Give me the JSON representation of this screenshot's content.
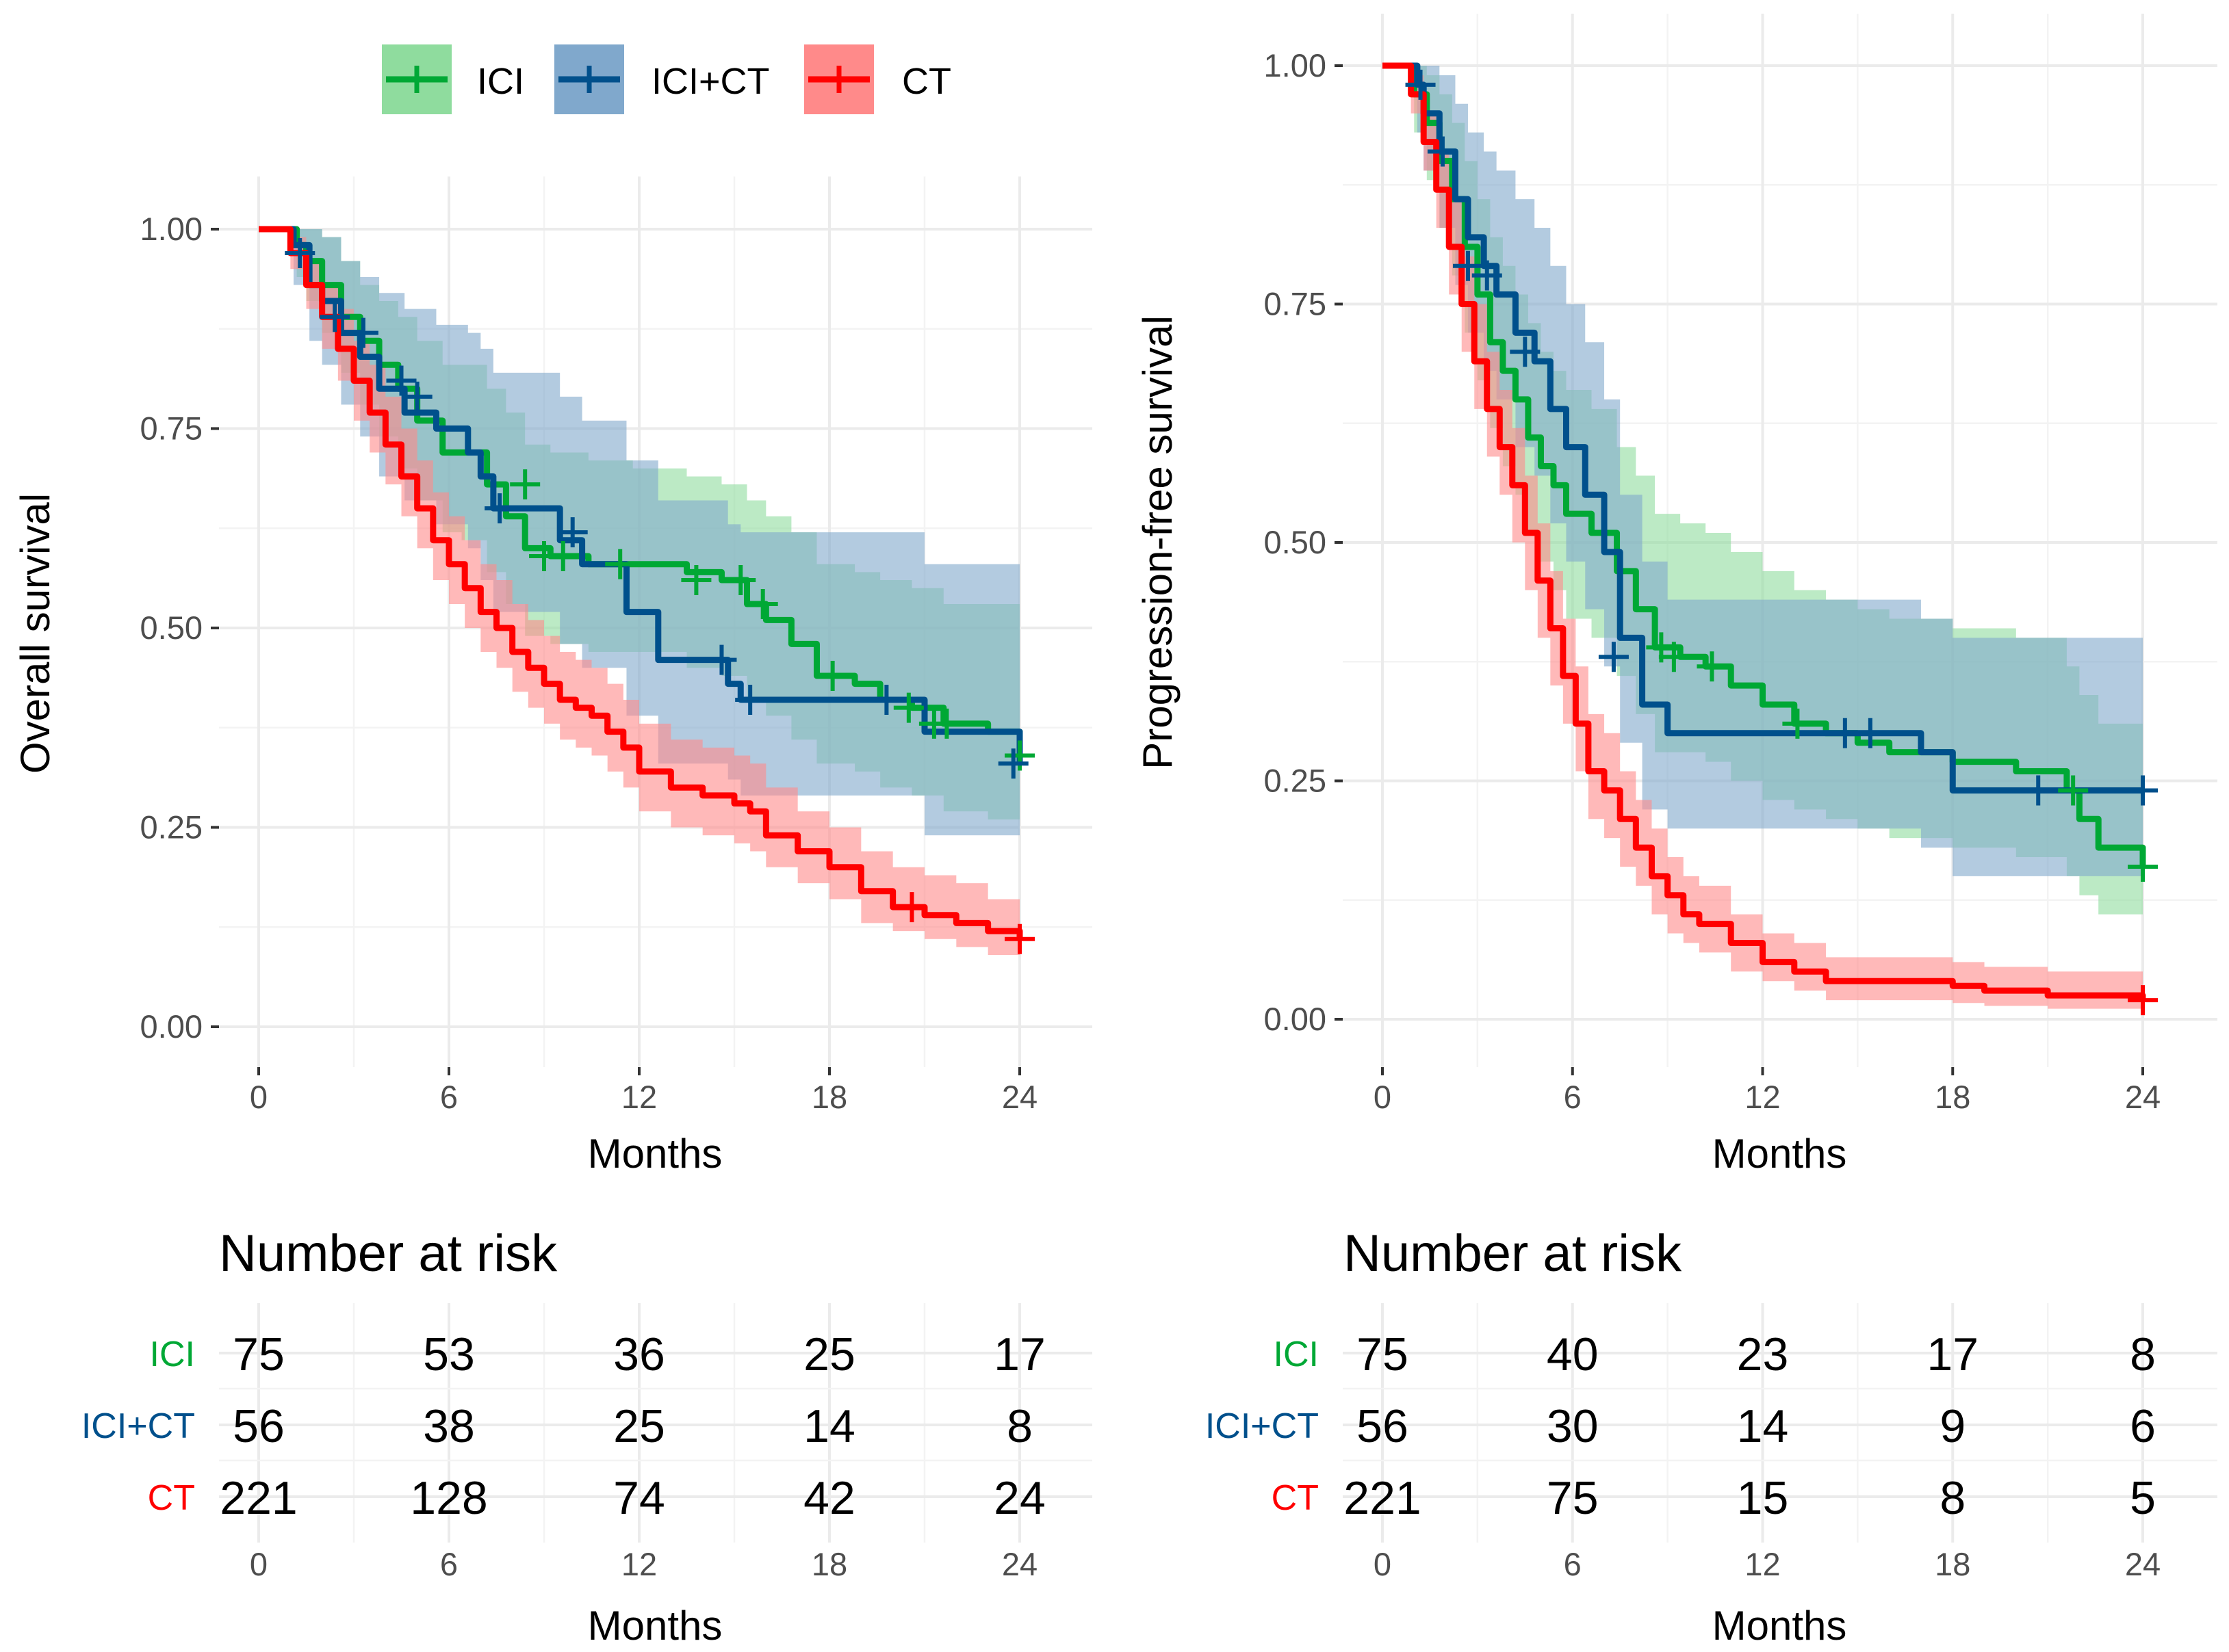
{
  "colors": {
    "ICI": "#00A835",
    "ICI+CT": "#00508C",
    "CT": "#FF0000",
    "ICI_fill": "#8FDC9E",
    "ICI+CT_fill": "#80A8CC",
    "CT_fill": "#FF8A8A"
  },
  "legend": {
    "items": [
      {
        "key": "ICI",
        "label": "ICI"
      },
      {
        "key": "ICI+CT",
        "label": "ICI+CT"
      },
      {
        "key": "CT",
        "label": "CT"
      }
    ]
  },
  "chart_data": [
    {
      "type": "line",
      "subtype": "kaplan-meier",
      "title": "",
      "xlabel": "Months",
      "ylabel": "Overall survival",
      "xlim": [
        0,
        24
      ],
      "ylim": [
        0,
        1
      ],
      "x_ticks": [
        "0",
        "6",
        "12",
        "18",
        "24"
      ],
      "y_ticks": [
        "0.00",
        "0.25",
        "0.50",
        "0.75",
        "1.00"
      ],
      "series": [
        {
          "name": "ICI",
          "t": [
            0,
            1.2,
            1.5,
            2.0,
            2.6,
            3.2,
            3.8,
            4.4,
            5.0,
            5.8,
            6.4,
            7.2,
            7.8,
            8.4,
            9.2,
            10.4,
            11.8,
            13.5,
            14.6,
            15.4,
            16.0,
            16.8,
            17.6,
            18.8,
            19.6,
            20.6,
            21.6,
            23.0,
            24.0
          ],
          "s": [
            1.0,
            0.98,
            0.96,
            0.93,
            0.89,
            0.86,
            0.83,
            0.8,
            0.76,
            0.72,
            0.72,
            0.68,
            0.64,
            0.6,
            0.59,
            0.58,
            0.58,
            0.57,
            0.56,
            0.53,
            0.51,
            0.48,
            0.44,
            0.43,
            0.41,
            0.4,
            0.38,
            0.37,
            0.34
          ],
          "lo": [
            1.0,
            0.94,
            0.91,
            0.87,
            0.82,
            0.78,
            0.74,
            0.7,
            0.66,
            0.62,
            0.61,
            0.57,
            0.53,
            0.49,
            0.48,
            0.47,
            0.47,
            0.45,
            0.44,
            0.41,
            0.39,
            0.36,
            0.33,
            0.32,
            0.3,
            0.29,
            0.27,
            0.26,
            0.22
          ],
          "hi": [
            1.0,
            1.0,
            1.0,
            0.99,
            0.96,
            0.93,
            0.91,
            0.89,
            0.86,
            0.83,
            0.83,
            0.8,
            0.77,
            0.73,
            0.72,
            0.71,
            0.7,
            0.69,
            0.68,
            0.66,
            0.64,
            0.62,
            0.58,
            0.57,
            0.56,
            0.55,
            0.53,
            0.53,
            0.5
          ],
          "censor_t": [
            8.4,
            9.0,
            9.6,
            11.4,
            13.8,
            15.2,
            15.9,
            18.1,
            20.5,
            21.3,
            21.7,
            24.0
          ],
          "censor_s": [
            0.68,
            0.59,
            0.59,
            0.58,
            0.56,
            0.56,
            0.53,
            0.44,
            0.4,
            0.38,
            0.38,
            0.34
          ]
        },
        {
          "name": "ICI+CT",
          "t": [
            0,
            1.1,
            1.6,
            2.0,
            2.6,
            3.2,
            3.8,
            4.6,
            5.6,
            6.6,
            7.0,
            7.4,
            8.0,
            9.5,
            10.2,
            11.6,
            12.6,
            14.8,
            15.2,
            15.8,
            19.6,
            21.0,
            24.0
          ],
          "s": [
            1.0,
            0.98,
            0.93,
            0.91,
            0.87,
            0.84,
            0.8,
            0.77,
            0.75,
            0.72,
            0.69,
            0.65,
            0.65,
            0.61,
            0.58,
            0.52,
            0.46,
            0.43,
            0.41,
            0.41,
            0.41,
            0.37,
            0.33
          ],
          "lo": [
            1.0,
            0.93,
            0.86,
            0.83,
            0.78,
            0.74,
            0.69,
            0.66,
            0.63,
            0.6,
            0.56,
            0.52,
            0.52,
            0.48,
            0.45,
            0.39,
            0.33,
            0.31,
            0.29,
            0.29,
            0.29,
            0.24,
            0.21
          ],
          "hi": [
            1.0,
            1.0,
            1.0,
            0.99,
            0.96,
            0.94,
            0.92,
            0.9,
            0.88,
            0.87,
            0.85,
            0.82,
            0.82,
            0.79,
            0.76,
            0.71,
            0.66,
            0.63,
            0.62,
            0.62,
            0.62,
            0.58,
            0.55
          ],
          "censor_t": [
            1.3,
            2.4,
            3.3,
            4.5,
            5.0,
            7.6,
            9.9,
            14.6,
            15.5,
            19.8,
            23.8
          ],
          "censor_s": [
            0.97,
            0.89,
            0.87,
            0.81,
            0.79,
            0.65,
            0.62,
            0.46,
            0.41,
            0.41,
            0.33
          ]
        },
        {
          "name": "CT",
          "t": [
            0,
            1.0,
            1.5,
            2.0,
            2.5,
            3.0,
            3.5,
            4.0,
            4.5,
            5.0,
            5.5,
            6.0,
            6.5,
            7.0,
            7.5,
            8.0,
            8.5,
            9.0,
            9.5,
            10.0,
            10.5,
            11.0,
            11.5,
            12.0,
            13.0,
            14.0,
            15.0,
            15.5,
            16.0,
            17.0,
            18.0,
            19.0,
            20.0,
            21.0,
            22.0,
            23.0,
            24.0
          ],
          "s": [
            1.0,
            0.97,
            0.93,
            0.89,
            0.85,
            0.81,
            0.77,
            0.73,
            0.69,
            0.65,
            0.61,
            0.58,
            0.55,
            0.52,
            0.5,
            0.47,
            0.45,
            0.43,
            0.41,
            0.4,
            0.39,
            0.37,
            0.35,
            0.32,
            0.3,
            0.29,
            0.28,
            0.27,
            0.24,
            0.22,
            0.2,
            0.17,
            0.15,
            0.14,
            0.13,
            0.12,
            0.11
          ],
          "lo": [
            1.0,
            0.95,
            0.9,
            0.85,
            0.81,
            0.76,
            0.72,
            0.68,
            0.64,
            0.6,
            0.56,
            0.53,
            0.5,
            0.47,
            0.45,
            0.42,
            0.4,
            0.38,
            0.36,
            0.35,
            0.34,
            0.32,
            0.3,
            0.27,
            0.25,
            0.24,
            0.23,
            0.22,
            0.2,
            0.18,
            0.16,
            0.13,
            0.12,
            0.11,
            0.1,
            0.09,
            0.08
          ],
          "hi": [
            1.0,
            0.99,
            0.96,
            0.93,
            0.9,
            0.86,
            0.83,
            0.79,
            0.75,
            0.71,
            0.67,
            0.64,
            0.61,
            0.58,
            0.56,
            0.53,
            0.51,
            0.49,
            0.47,
            0.46,
            0.45,
            0.43,
            0.41,
            0.38,
            0.36,
            0.35,
            0.34,
            0.33,
            0.3,
            0.27,
            0.25,
            0.22,
            0.2,
            0.19,
            0.18,
            0.16,
            0.15
          ],
          "censor_t": [
            20.6,
            24.0
          ],
          "censor_s": [
            0.15,
            0.11
          ]
        }
      ],
      "risk_table": {
        "title": "Number at risk",
        "xlabel": "Months",
        "times": [
          "0",
          "6",
          "12",
          "18",
          "24"
        ],
        "rows": [
          {
            "strata": "ICI",
            "values": [
              "75",
              "53",
              "36",
              "25",
              "17"
            ]
          },
          {
            "strata": "ICI+CT",
            "values": [
              "56",
              "38",
              "25",
              "14",
              "8"
            ]
          },
          {
            "strata": "CT",
            "values": [
              "221",
              "128",
              "74",
              "42",
              "24"
            ]
          }
        ]
      }
    },
    {
      "type": "line",
      "subtype": "kaplan-meier",
      "title": "",
      "xlabel": "Months",
      "ylabel": "Progression-free survival",
      "xlim": [
        0,
        24
      ],
      "ylim": [
        0,
        1
      ],
      "x_ticks": [
        "0",
        "6",
        "12",
        "18",
        "24"
      ],
      "y_ticks": [
        "0.00",
        "0.25",
        "0.50",
        "0.75",
        "1.00"
      ],
      "series": [
        {
          "name": "ICI",
          "t": [
            0,
            1.0,
            1.4,
            1.8,
            2.2,
            2.6,
            3.0,
            3.4,
            3.8,
            4.2,
            4.6,
            5.0,
            5.4,
            5.8,
            6.6,
            7.4,
            8.0,
            8.6,
            9.4,
            10.2,
            11.0,
            12.0,
            13.0,
            14.0,
            15.0,
            16.0,
            17.0,
            18.0,
            20.0,
            21.6,
            22.0,
            22.6,
            24.0
          ],
          "s": [
            1.0,
            0.97,
            0.94,
            0.9,
            0.86,
            0.81,
            0.76,
            0.71,
            0.68,
            0.65,
            0.61,
            0.58,
            0.56,
            0.53,
            0.51,
            0.47,
            0.43,
            0.39,
            0.38,
            0.37,
            0.35,
            0.33,
            0.31,
            0.3,
            0.29,
            0.28,
            0.28,
            0.27,
            0.26,
            0.24,
            0.21,
            0.18,
            0.16
          ],
          "lo": [
            1.0,
            0.93,
            0.88,
            0.83,
            0.78,
            0.72,
            0.67,
            0.62,
            0.58,
            0.55,
            0.51,
            0.48,
            0.45,
            0.42,
            0.4,
            0.36,
            0.32,
            0.28,
            0.28,
            0.27,
            0.25,
            0.23,
            0.22,
            0.21,
            0.2,
            0.19,
            0.19,
            0.18,
            0.17,
            0.15,
            0.13,
            0.11,
            0.09
          ],
          "hi": [
            1.0,
            1.0,
            0.99,
            0.97,
            0.94,
            0.9,
            0.86,
            0.82,
            0.79,
            0.76,
            0.73,
            0.7,
            0.68,
            0.66,
            0.64,
            0.6,
            0.57,
            0.53,
            0.52,
            0.51,
            0.49,
            0.47,
            0.45,
            0.44,
            0.43,
            0.42,
            0.42,
            0.41,
            0.4,
            0.37,
            0.34,
            0.31,
            0.29
          ],
          "censor_t": [
            8.8,
            9.2,
            10.4,
            13.1,
            21.8,
            24.0
          ],
          "censor_s": [
            0.39,
            0.38,
            0.37,
            0.31,
            0.24,
            0.16
          ]
        },
        {
          "name": "ICI+CT",
          "t": [
            0,
            1.1,
            1.3,
            1.8,
            2.3,
            2.7,
            3.2,
            3.6,
            4.2,
            4.8,
            5.3,
            5.8,
            6.4,
            7.0,
            7.5,
            8.2,
            9.0,
            10.0,
            12.0,
            14.0,
            16.0,
            17.0,
            18.0,
            20.0,
            22.0,
            24.0
          ],
          "s": [
            1.0,
            0.98,
            0.95,
            0.91,
            0.86,
            0.82,
            0.79,
            0.76,
            0.72,
            0.69,
            0.64,
            0.6,
            0.55,
            0.49,
            0.4,
            0.33,
            0.3,
            0.3,
            0.3,
            0.3,
            0.3,
            0.28,
            0.24,
            0.24,
            0.24,
            0.24
          ],
          "lo": [
            1.0,
            0.93,
            0.89,
            0.83,
            0.77,
            0.72,
            0.68,
            0.65,
            0.6,
            0.57,
            0.52,
            0.48,
            0.43,
            0.37,
            0.29,
            0.22,
            0.2,
            0.2,
            0.2,
            0.2,
            0.2,
            0.18,
            0.15,
            0.15,
            0.15,
            0.15
          ],
          "hi": [
            1.0,
            1.0,
            1.0,
            0.99,
            0.96,
            0.93,
            0.91,
            0.89,
            0.86,
            0.83,
            0.79,
            0.75,
            0.71,
            0.65,
            0.55,
            0.48,
            0.44,
            0.44,
            0.44,
            0.44,
            0.44,
            0.42,
            0.4,
            0.4,
            0.4,
            0.4
          ],
          "censor_t": [
            1.2,
            1.9,
            2.7,
            3.3,
            4.5,
            7.3,
            14.6,
            15.4,
            20.7,
            24.0
          ],
          "censor_s": [
            0.98,
            0.91,
            0.79,
            0.78,
            0.7,
            0.38,
            0.3,
            0.3,
            0.24,
            0.24
          ]
        },
        {
          "name": "CT",
          "t": [
            0,
            0.9,
            1.3,
            1.7,
            2.1,
            2.5,
            2.9,
            3.3,
            3.7,
            4.1,
            4.5,
            4.9,
            5.3,
            5.7,
            6.1,
            6.5,
            7.0,
            7.5,
            8.0,
            8.5,
            9.0,
            9.5,
            10.0,
            11.0,
            12.0,
            13.0,
            14.0,
            15.0,
            16.0,
            17.0,
            18.0,
            19.0,
            20.0,
            21.0,
            22.0,
            23.0,
            24.0
          ],
          "s": [
            1.0,
            0.97,
            0.92,
            0.87,
            0.81,
            0.75,
            0.69,
            0.64,
            0.6,
            0.56,
            0.51,
            0.46,
            0.41,
            0.36,
            0.31,
            0.26,
            0.24,
            0.21,
            0.18,
            0.15,
            0.13,
            0.11,
            0.1,
            0.08,
            0.06,
            0.05,
            0.04,
            0.04,
            0.04,
            0.04,
            0.035,
            0.03,
            0.03,
            0.025,
            0.025,
            0.025,
            0.02
          ],
          "lo": [
            1.0,
            0.95,
            0.89,
            0.83,
            0.76,
            0.7,
            0.64,
            0.59,
            0.55,
            0.5,
            0.45,
            0.4,
            0.35,
            0.31,
            0.26,
            0.21,
            0.19,
            0.16,
            0.14,
            0.11,
            0.09,
            0.08,
            0.07,
            0.05,
            0.04,
            0.03,
            0.02,
            0.02,
            0.02,
            0.02,
            0.017,
            0.014,
            0.014,
            0.011,
            0.011,
            0.011,
            0.008
          ],
          "hi": [
            1.0,
            0.99,
            0.95,
            0.91,
            0.86,
            0.8,
            0.75,
            0.7,
            0.66,
            0.62,
            0.57,
            0.52,
            0.47,
            0.42,
            0.37,
            0.32,
            0.3,
            0.26,
            0.23,
            0.2,
            0.17,
            0.15,
            0.14,
            0.11,
            0.09,
            0.08,
            0.065,
            0.065,
            0.065,
            0.065,
            0.06,
            0.055,
            0.055,
            0.05,
            0.05,
            0.05,
            0.045
          ],
          "censor_t": [
            24.0
          ],
          "censor_s": [
            0.02
          ]
        }
      ],
      "risk_table": {
        "title": "Number at risk",
        "xlabel": "Months",
        "times": [
          "0",
          "6",
          "12",
          "18",
          "24"
        ],
        "rows": [
          {
            "strata": "ICI",
            "values": [
              "75",
              "40",
              "23",
              "17",
              "8"
            ]
          },
          {
            "strata": "ICI+CT",
            "values": [
              "56",
              "30",
              "14",
              "9",
              "6"
            ]
          },
          {
            "strata": "CT",
            "values": [
              "221",
              "75",
              "15",
              "8",
              "5"
            ]
          }
        ]
      }
    }
  ]
}
